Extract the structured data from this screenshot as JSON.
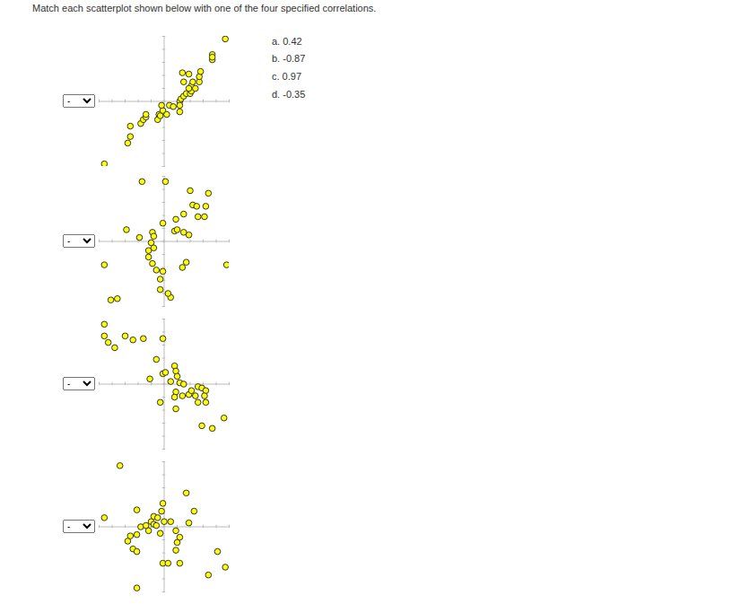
{
  "instruction": "Match each scatterplot shown below with one of the four specified correlations.",
  "choices": [
    "a. 0.42",
    "b. -0.87",
    "c. 0.97",
    "d. -0.35"
  ],
  "dropdown_text": "-",
  "chart_data": [
    {
      "type": "scatter",
      "marker": "circle",
      "color": "#ffff00",
      "tick_labels": false,
      "xlim": [
        -5,
        5
      ],
      "ylim": [
        -5,
        5
      ],
      "xticks": [
        -5,
        -4,
        -3,
        -2,
        -1,
        0,
        1,
        2,
        3,
        4,
        5
      ],
      "yticks": [
        -5,
        -4,
        -3,
        -2,
        -1,
        0,
        1,
        2,
        3,
        4,
        5
      ],
      "x": [
        -4.6,
        -2.8,
        -2.6,
        -2.6,
        -1.8,
        -1.6,
        -1.4,
        -1.4,
        -0.5,
        -0.4,
        -0.3,
        -0.1,
        0.2,
        -0.2,
        0.4,
        0.7,
        1.2,
        1.2,
        1.3,
        1.5,
        1.7,
        2.0,
        2.1,
        2.1,
        2.4,
        1.9,
        2.7,
        2.2,
        1.5,
        2.7,
        1.4,
        1.9,
        2.8,
        3.7,
        3.7,
        3.7,
        4.7,
        1.2
      ],
      "y": [
        -4.8,
        -3.2,
        -2.7,
        -1.9,
        -1.7,
        -1.4,
        -1.2,
        -1.0,
        -1.4,
        -1.0,
        -1.1,
        -0.7,
        -1.0,
        -0.3,
        -0.3,
        -0.4,
        -0.8,
        0,
        0.2,
        0.4,
        0.6,
        0.6,
        0.8,
        1.2,
        1.0,
        1.0,
        1.5,
        1.5,
        1.5,
        1.9,
        2.2,
        2.1,
        2.3,
        3.2,
        3.6,
        3.4,
        4.8,
        -0.3
      ]
    },
    {
      "type": "scatter",
      "marker": "circle",
      "color": "#ffff00",
      "tick_labels": false,
      "xlim": [
        -5,
        5
      ],
      "ylim": [
        -5,
        5
      ],
      "xticks": [
        -5,
        -4,
        -3,
        -2,
        -1,
        0,
        1,
        2,
        3,
        4,
        5
      ],
      "yticks": [
        -5,
        -4,
        -3,
        -2,
        -1,
        0,
        1,
        2,
        3,
        4,
        5
      ],
      "x": [
        -4.6,
        -2.9,
        -1.7,
        0.1,
        2.0,
        3.4,
        2.2,
        2.5,
        3.2,
        3.1,
        1.5,
        2.6,
        0.9,
        -0.1,
        -0.9,
        -0.8,
        -1.0,
        -1.2,
        -1.2,
        -0.9,
        -0.6,
        -0.1,
        -0.3,
        -0.3,
        0.5,
        0.3,
        0.8,
        1.0,
        1.9,
        1.5,
        1.4,
        1.7,
        4.8,
        -4.1,
        -3.6,
        -1.9,
        -0.8
      ],
      "y": [
        -1.8,
        0.9,
        4.6,
        4.6,
        3.9,
        3.7,
        2.8,
        2.7,
        2.7,
        1.9,
        2.1,
        1.9,
        1.7,
        1.4,
        0.7,
        0.4,
        -0.1,
        -0.7,
        -1.2,
        -1.7,
        -2.2,
        -2.3,
        -2.9,
        -3.7,
        -4.3,
        -4.0,
        0.8,
        0.9,
        0.5,
        0.7,
        -2.0,
        -1.6,
        -1.8,
        -4.5,
        -4.4,
        0.3,
        -0.5
      ]
    },
    {
      "type": "scatter",
      "marker": "circle",
      "color": "#ffff00",
      "tick_labels": false,
      "xlim": [
        -5,
        5
      ],
      "ylim": [
        -5,
        5
      ],
      "xticks": [
        -5,
        -4,
        -3,
        -2,
        -1,
        0,
        1,
        2,
        3,
        4,
        5
      ],
      "yticks": [
        -5,
        -4,
        -3,
        -2,
        -1,
        0,
        1,
        2,
        3,
        4,
        5
      ],
      "x": [
        -4.6,
        -4.6,
        -4.3,
        -3.8,
        -3.0,
        -2.4,
        -1.6,
        -0.1,
        -0.6,
        -1.1,
        -0.1,
        0.1,
        0.8,
        0.9,
        1.0,
        0.5,
        1.2,
        1.5,
        0.9,
        0.8,
        1.4,
        1.9,
        2.1,
        2.4,
        2.6,
        2.9,
        3.2,
        3.1,
        3.2,
        2.6,
        0.9,
        -0.3,
        2.9,
        3.7,
        4.6
      ],
      "y": [
        4.6,
        3.7,
        3.2,
        2.8,
        3.7,
        3.4,
        3.5,
        3.5,
        1.9,
        0.4,
        0.8,
        0.9,
        1.4,
        1.0,
        0.6,
        0.2,
        0.1,
        0,
        -0.6,
        -1.0,
        -0.9,
        -0.8,
        -0.5,
        -0.9,
        -0.2,
        -0.3,
        -0.5,
        -0.9,
        -1.4,
        -1.4,
        -1.9,
        -1.4,
        -3.2,
        -3.4,
        -2.6
      ]
    },
    {
      "type": "scatter",
      "marker": "circle",
      "color": "#ffff00",
      "tick_labels": false,
      "xlim": [
        -5,
        5
      ],
      "ylim": [
        -5,
        5
      ],
      "xticks": [
        -5,
        -4,
        -3,
        -2,
        -1,
        0,
        1,
        2,
        3,
        4,
        5
      ],
      "yticks": [
        -5,
        -4,
        -3,
        -2,
        -1,
        0,
        1,
        2,
        3,
        4,
        5
      ],
      "x": [
        -4.6,
        -3.4,
        -2.8,
        -2.6,
        -2.1,
        -2.4,
        -2.1,
        -2.1,
        -1.8,
        -1.4,
        -1.0,
        -0.8,
        -0.6,
        -0.8,
        -0.5,
        -0.2,
        -0.1,
        0,
        0.5,
        0.9,
        1.0,
        1.2,
        0.9,
        -0.1,
        0.3,
        1.2,
        1.7,
        2.3,
        1.9,
        3.4,
        4.1,
        4.7,
        -2.1,
        -1.2,
        -0.3
      ],
      "y": [
        0.7,
        4.7,
        -1.1,
        -0.7,
        -0.6,
        -1.7,
        -1.9,
        1.3,
        0,
        0.1,
        0.4,
        0.2,
        0.1,
        0.8,
        0.7,
        1.2,
        1.8,
        0.4,
        0.4,
        -0.3,
        -1.2,
        -0.8,
        -1.8,
        -2.8,
        -2.8,
        -2.8,
        2.6,
        1.2,
        0.3,
        -3.7,
        -1.9,
        -3.1,
        -4.7,
        -0.3,
        -0.5
      ]
    }
  ]
}
